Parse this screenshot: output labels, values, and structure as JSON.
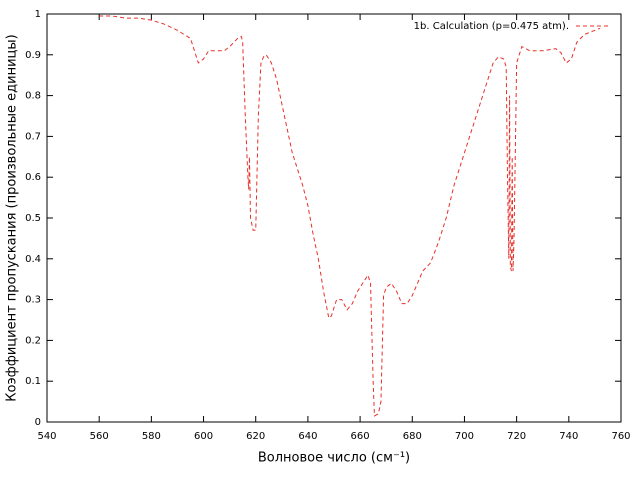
{
  "chart_data": {
    "type": "line",
    "xlabel": "Волновое число (см⁻¹)",
    "ylabel": "Коэффициент пропускания (произвольные единицы)",
    "xlim": [
      540,
      760
    ],
    "xticks": [
      540,
      560,
      580,
      600,
      620,
      640,
      660,
      680,
      700,
      720,
      740,
      760
    ],
    "ylim": [
      0,
      1
    ],
    "yticks": [
      0,
      0.1,
      0.2,
      0.3,
      0.4,
      0.5,
      0.6,
      0.7,
      0.8,
      0.9,
      1
    ],
    "grid": false,
    "legend": "top-right",
    "x": [
      560,
      565,
      570,
      575,
      580,
      585,
      590,
      595,
      598,
      600,
      602,
      605,
      608,
      610,
      613,
      614.5,
      615,
      616,
      617,
      617.3,
      617.6,
      618,
      619,
      620,
      621,
      622,
      623,
      624,
      626,
      628,
      630,
      632,
      634,
      636,
      638,
      640,
      642,
      644,
      646,
      648,
      649,
      651,
      653,
      655,
      657,
      659,
      661,
      663,
      664,
      665,
      665.5,
      667,
      668,
      669,
      670,
      672,
      674,
      676,
      678,
      680,
      682,
      684,
      687,
      690,
      693,
      696,
      699,
      702,
      705,
      708,
      711,
      713,
      715,
      716,
      716.5,
      717,
      717.3,
      717.6,
      718,
      718.3,
      718.6,
      719,
      720,
      722,
      725,
      730,
      735,
      737,
      739,
      741,
      743,
      746,
      750,
      752
    ],
    "series": [
      {
        "name": "1b. Calculation (p=0.475 atm).",
        "color": "#e8302a",
        "values": [
          0.995,
          0.995,
          0.99,
          0.99,
          0.985,
          0.975,
          0.96,
          0.94,
          0.88,
          0.89,
          0.91,
          0.91,
          0.91,
          0.92,
          0.94,
          0.945,
          0.93,
          0.75,
          0.6,
          0.57,
          0.65,
          0.5,
          0.47,
          0.47,
          0.75,
          0.88,
          0.895,
          0.9,
          0.88,
          0.84,
          0.78,
          0.72,
          0.66,
          0.62,
          0.58,
          0.53,
          0.46,
          0.4,
          0.32,
          0.255,
          0.26,
          0.3,
          0.3,
          0.275,
          0.29,
          0.32,
          0.34,
          0.36,
          0.34,
          0.1,
          0.015,
          0.02,
          0.05,
          0.31,
          0.33,
          0.34,
          0.32,
          0.29,
          0.29,
          0.31,
          0.34,
          0.37,
          0.39,
          0.44,
          0.5,
          0.58,
          0.64,
          0.7,
          0.76,
          0.82,
          0.88,
          0.895,
          0.89,
          0.87,
          0.6,
          0.4,
          0.8,
          0.38,
          0.37,
          0.65,
          0.37,
          0.45,
          0.88,
          0.92,
          0.91,
          0.91,
          0.915,
          0.905,
          0.88,
          0.89,
          0.93,
          0.95,
          0.96,
          0.965
        ]
      }
    ]
  }
}
